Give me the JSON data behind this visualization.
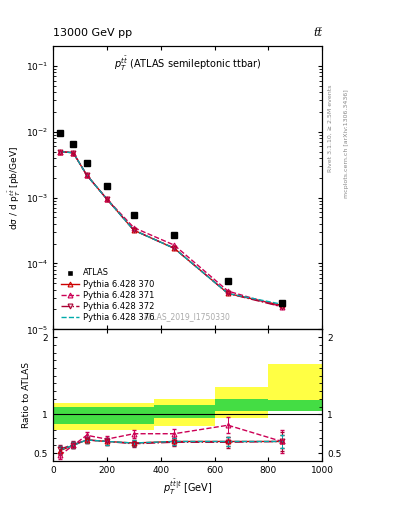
{
  "title_top": "13000 GeV pp",
  "title_right": "tt̅",
  "plot_title": "$p_T^{t\\bar{t}}$ (ATLAS semileptonic ttbar)",
  "watermark": "ATLAS_2019_I1750330",
  "rivet_label": "Rivet 3.1.10, ≥ 2.5M events",
  "arxiv_label": "mcplots.cern.ch [arXiv:1306.3436]",
  "atlas_x": [
    25,
    75,
    125,
    200,
    300,
    450,
    650,
    850
  ],
  "atlas_y": [
    0.0095,
    0.0065,
    0.0033,
    0.0015,
    0.00055,
    0.00027,
    5.5e-05,
    2.5e-05
  ],
  "py370_y": [
    0.005,
    0.0048,
    0.0022,
    0.00095,
    0.00032,
    0.00017,
    3.5e-05,
    2.3e-05
  ],
  "py371_y": [
    0.005,
    0.0048,
    0.0022,
    0.00095,
    0.00035,
    0.00019,
    3.8e-05,
    2.2e-05
  ],
  "py372_y": [
    0.005,
    0.0048,
    0.0022,
    0.00095,
    0.00032,
    0.00017,
    3.5e-05,
    2.2e-05
  ],
  "py376_y": [
    0.005,
    0.0048,
    0.0022,
    0.00095,
    0.00032,
    0.00017,
    3.5e-05,
    2.4e-05
  ],
  "ratio370_y": [
    0.53,
    0.6,
    0.67,
    0.65,
    0.63,
    0.65,
    0.65,
    0.65
  ],
  "ratio371_y": [
    0.47,
    0.6,
    0.73,
    0.68,
    0.75,
    0.75,
    0.86,
    0.65
  ],
  "ratio372_y": [
    0.55,
    0.61,
    0.67,
    0.65,
    0.62,
    0.64,
    0.64,
    0.65
  ],
  "ratio376_y": [
    0.54,
    0.6,
    0.67,
    0.65,
    0.63,
    0.65,
    0.65,
    0.65
  ],
  "ratio_err370": [
    0.05,
    0.04,
    0.04,
    0.04,
    0.04,
    0.05,
    0.06,
    0.08
  ],
  "ratio_err371": [
    0.05,
    0.04,
    0.04,
    0.04,
    0.05,
    0.06,
    0.1,
    0.15
  ],
  "ratio_err372": [
    0.05,
    0.04,
    0.04,
    0.04,
    0.04,
    0.05,
    0.07,
    0.12
  ],
  "ratio_err376": [
    0.05,
    0.04,
    0.04,
    0.04,
    0.04,
    0.05,
    0.06,
    0.08
  ],
  "color_370": "#cc0000",
  "color_371": "#cc0055",
  "color_372": "#aa0033",
  "color_376": "#00aaaa",
  "color_atlas": "black",
  "color_yellow": "#ffff44",
  "color_green": "#44dd44",
  "xlim": [
    0,
    1000
  ],
  "ylim_main": [
    1e-05,
    0.2
  ],
  "ylim_ratio": [
    0.4,
    2.1
  ],
  "ylabel_main": "dσ / d p$_T^{t\\bar{t}}$ [pb/GeV]",
  "ylabel_ratio": "Ratio to ATLAS",
  "xlabel": "$p_T^{t\\bar{t}|t}$ [GeV]"
}
